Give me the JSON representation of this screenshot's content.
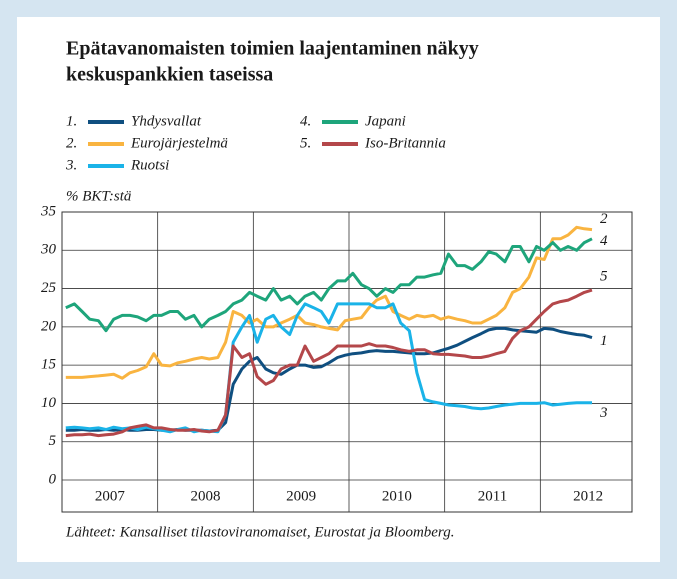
{
  "chart_data": {
    "type": "line",
    "title": [
      "Epätavanomaisten toimien laajentaminen näkyy",
      "keskuspankkien taseissa"
    ],
    "ylabel": "% BKT:stä",
    "source": "Lähteet: Kansalliset tilastoviranomaiset, Eurostat ja Bloomberg.",
    "xlim": [
      2007,
      2013
    ],
    "xticks": [
      {
        "value": 2007.5,
        "label": "2007"
      },
      {
        "value": 2008.5,
        "label": "2008"
      },
      {
        "value": 2009.5,
        "label": "2009"
      },
      {
        "value": 2010.5,
        "label": "2010"
      },
      {
        "value": 2011.5,
        "label": "2011"
      },
      {
        "value": 2012.5,
        "label": "2012"
      }
    ],
    "xgrid": [
      2008,
      2009,
      2010,
      2011,
      2012
    ],
    "ylim": [
      0,
      35
    ],
    "yticks": [
      0,
      5,
      10,
      15,
      20,
      25,
      30,
      35
    ],
    "grid": true,
    "x": [
      2007.04,
      2007.13,
      2007.21,
      2007.29,
      2007.38,
      2007.46,
      2007.54,
      2007.63,
      2007.71,
      2007.79,
      2007.88,
      2007.96,
      2008.04,
      2008.13,
      2008.21,
      2008.29,
      2008.38,
      2008.46,
      2008.54,
      2008.63,
      2008.71,
      2008.79,
      2008.88,
      2008.96,
      2009.04,
      2009.13,
      2009.21,
      2009.29,
      2009.38,
      2009.46,
      2009.54,
      2009.63,
      2009.71,
      2009.79,
      2009.88,
      2009.96,
      2010.04,
      2010.13,
      2010.21,
      2010.29,
      2010.38,
      2010.46,
      2010.54,
      2010.63,
      2010.71,
      2010.79,
      2010.88,
      2010.96,
      2011.04,
      2011.13,
      2011.21,
      2011.29,
      2011.38,
      2011.46,
      2011.54,
      2011.63,
      2011.71,
      2011.79,
      2011.88,
      2011.96,
      2012.04,
      2012.13,
      2012.21,
      2012.29,
      2012.38,
      2012.46,
      2012.54
    ],
    "series": [
      {
        "number": "1.",
        "end_label": "1",
        "name": "Yhdysvallat",
        "color": "#0f4f80",
        "values": [
          6.5,
          6.5,
          6.6,
          6.5,
          6.5,
          6.6,
          6.5,
          6.6,
          6.5,
          6.5,
          6.6,
          6.6,
          6.5,
          6.5,
          6.6,
          6.5,
          6.5,
          6.5,
          6.4,
          6.5,
          7.5,
          12.5,
          14.5,
          15.5,
          16,
          14.5,
          14,
          13.8,
          14.5,
          15,
          15,
          14.7,
          14.8,
          15.3,
          16,
          16.3,
          16.5,
          16.6,
          16.8,
          16.9,
          16.8,
          16.8,
          16.7,
          16.6,
          16.5,
          16.5,
          16.6,
          16.9,
          17.2,
          17.6,
          18.1,
          18.6,
          19.1,
          19.6,
          19.8,
          19.8,
          19.6,
          19.5,
          19.4,
          19.3,
          19.8,
          19.7,
          19.4,
          19.2,
          19.0,
          18.9,
          18.6
        ]
      },
      {
        "number": "2.",
        "end_label": "2",
        "name": "Eurojärjestelmä",
        "color": "#f9b440",
        "values": [
          13.4,
          13.4,
          13.4,
          13.5,
          13.6,
          13.7,
          13.8,
          13.3,
          14,
          14.3,
          14.8,
          16.5,
          15,
          14.9,
          15.3,
          15.5,
          15.8,
          16,
          15.8,
          16,
          18,
          22,
          21.5,
          20.5,
          21,
          20,
          20,
          20.5,
          21,
          21.5,
          20.5,
          20.3,
          20,
          19.8,
          19.6,
          20.8,
          21,
          21.2,
          22.5,
          23.5,
          24,
          22,
          21.5,
          21,
          21.5,
          21.3,
          21.5,
          21,
          21.3,
          21,
          20.8,
          20.5,
          20.5,
          21,
          21.5,
          22.5,
          24.5,
          25,
          26.5,
          29,
          28.8,
          31.5,
          31.5,
          32,
          33,
          32.8,
          32.7
        ]
      },
      {
        "number": "3.",
        "end_label": "3",
        "name": "Ruotsi",
        "color": "#1ab3e8",
        "values": [
          6.8,
          6.9,
          6.8,
          6.7,
          6.8,
          6.6,
          6.9,
          6.7,
          6.8,
          6.6,
          6.9,
          6.7,
          6.5,
          6.3,
          6.6,
          6.8,
          6.3,
          6.5,
          6.4,
          6.3,
          8.5,
          18,
          20,
          21.5,
          18,
          21,
          21.5,
          20,
          19,
          21.5,
          23,
          22.5,
          22,
          20.5,
          23,
          23,
          23,
          23,
          23,
          22.5,
          22.5,
          23,
          20.5,
          19.5,
          14,
          10.5,
          10.2,
          10,
          9.8,
          9.7,
          9.6,
          9.4,
          9.3,
          9.4,
          9.6,
          9.8,
          9.9,
          10,
          10,
          10,
          10.1,
          9.8,
          9.9,
          10,
          10.1,
          10.1,
          10.1
        ]
      },
      {
        "number": "4.",
        "end_label": "4",
        "name": "Japani",
        "color": "#1ea57b",
        "values": [
          22.5,
          23,
          22,
          21,
          20.8,
          19.5,
          21,
          21.5,
          21.5,
          21.3,
          20.8,
          21.5,
          21.5,
          22,
          22,
          21,
          21.5,
          20,
          21,
          21.5,
          22,
          23,
          23.5,
          24.5,
          24,
          23.5,
          25,
          23.5,
          24,
          23,
          24,
          24.5,
          23.5,
          25,
          26,
          26,
          27,
          25.5,
          25,
          24,
          25,
          24.5,
          25.5,
          25.5,
          26.5,
          26.5,
          26.8,
          27,
          29.5,
          28,
          28,
          27.5,
          28.5,
          29.8,
          29.5,
          28.5,
          30.5,
          30.5,
          28.5,
          30.5,
          30,
          31,
          30,
          30.5,
          30,
          31,
          31.5
        ]
      },
      {
        "number": "5.",
        "end_label": "5",
        "name": "Iso-Britannia",
        "color": "#b4474a",
        "values": [
          5.8,
          5.9,
          5.9,
          6,
          5.8,
          5.9,
          6,
          6.3,
          6.8,
          7,
          7.2,
          6.8,
          6.8,
          6.6,
          6.5,
          6.5,
          6.6,
          6.4,
          6.3,
          6.5,
          8.5,
          17.5,
          16,
          16.5,
          13.5,
          12.5,
          13,
          14.5,
          15,
          15,
          17.5,
          15.5,
          16,
          16.5,
          17.5,
          17.5,
          17.5,
          17.5,
          17.8,
          17.5,
          17.5,
          17.3,
          17,
          16.8,
          17,
          17,
          16.5,
          16.4,
          16.4,
          16.3,
          16.2,
          16,
          16,
          16.2,
          16.5,
          16.8,
          18.5,
          19.5,
          20,
          21,
          22,
          23,
          23.3,
          23.5,
          24,
          24.5,
          24.8
        ]
      }
    ]
  }
}
